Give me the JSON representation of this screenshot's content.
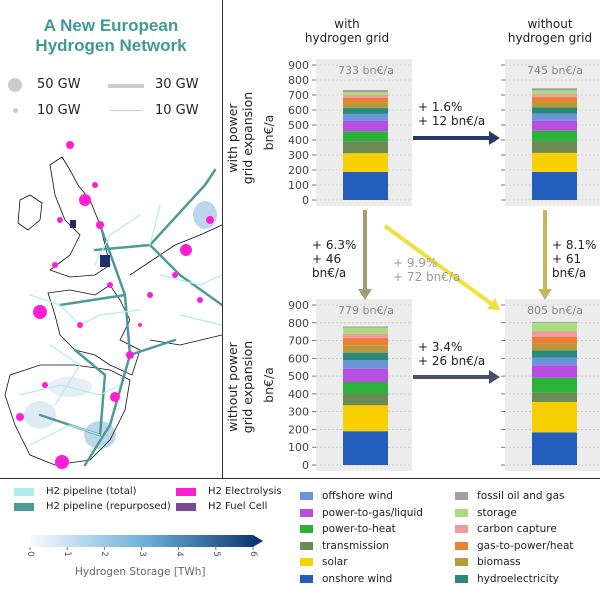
{
  "map": {
    "title_line1": "A New European",
    "title_line2": "Hydrogen Network",
    "size_legend": {
      "node_large": "50 GW",
      "node_small": "10 GW",
      "line_thick": "30 GW",
      "line_thin": "10 GW"
    },
    "legend": [
      {
        "label": "H2 pipeline (total)",
        "color": "#aeeeea"
      },
      {
        "label": "H2 pipeline (repurposed)",
        "color": "#4e9a98"
      },
      {
        "label": "H2 Electrolysis",
        "color": "#ff1fd2"
      },
      {
        "label": "H2 Fuel Cell",
        "color": "#7b4a92"
      }
    ],
    "colorbar": {
      "label": "Hydrogen Storage [TWh]",
      "ticks": [
        "0",
        "1",
        "2",
        "3",
        "4",
        "5",
        "6"
      ]
    }
  },
  "columns": {
    "with_grid": "with\nhydrogen grid",
    "without_grid": "without\nhydrogen grid"
  },
  "rows": {
    "with_power": "with power\ngrid expansion",
    "without_power": "without power\ngrid expansion"
  },
  "annotations": {
    "top_horizontal": "+ 1.6%\n+ 12 bn€/a",
    "left_vertical": "+ 6.3%\n+ 46\nbn€/a",
    "diagonal": "+ 9.9%\n+ 72 bn€/a",
    "right_vertical": "+ 8.1%\n+ 61\nbn€/a",
    "bottom_horizontal": "+ 3.4%\n+ 26 bn€/a"
  },
  "chart_data": {
    "type": "bar",
    "stacked": true,
    "ylabel": "bn€/a",
    "ylim": [
      0,
      900
    ],
    "yticks": [
      "0",
      "100",
      "200",
      "300",
      "400",
      "500",
      "600",
      "700",
      "800",
      "900"
    ],
    "grid": true,
    "components": [
      "onshore wind",
      "solar",
      "transmission",
      "power-to-heat",
      "power-to-gas/liquid",
      "offshore wind",
      "hydroelectricity",
      "biomass",
      "gas-to-power/heat",
      "carbon capture",
      "storage",
      "fossil oil and gas"
    ],
    "colors": {
      "onshore wind": "#235ebc",
      "solar": "#f8cf00",
      "transmission": "#6b8b55",
      "power-to-heat": "#2cb23a",
      "power-to-gas/liquid": "#b84ee0",
      "offshore wind": "#6a95d8",
      "hydroelectricity": "#2a8a7a",
      "biomass": "#b89a3a",
      "gas-to-power/heat": "#ea7f36",
      "carbon capture": "#f29aa0",
      "storage": "#a8dc7c",
      "fossil oil and gas": "#a0a0a0"
    },
    "panels": [
      {
        "label": "733 bn€/a",
        "total": 733,
        "values": [
          187,
          125,
          80,
          66,
          69,
          47,
          39,
          36,
          33,
          19,
          19,
          13
        ]
      },
      {
        "label": "745 bn€/a",
        "total": 745,
        "values": [
          187,
          127,
          79,
          69,
          67,
          47,
          41,
          37,
          32,
          20,
          25,
          14
        ]
      },
      {
        "label": "779 bn€/a",
        "total": 779,
        "values": [
          190,
          146,
          66,
          65,
          75,
          47,
          43,
          41,
          41,
          24,
          34,
          7
        ]
      },
      {
        "label": "805 bn€/a",
        "total": 805,
        "values": [
          183,
          172,
          51,
          84,
          71,
          43,
          41,
          37,
          38,
          31,
          49,
          5
        ]
      }
    ],
    "legend_order": [
      [
        "offshore wind",
        "power-to-gas/liquid",
        "power-to-heat",
        "transmission",
        "solar",
        "onshore wind"
      ],
      [
        "fossil oil and gas",
        "storage",
        "carbon capture",
        "gas-to-power/heat",
        "biomass",
        "hydroelectricity"
      ]
    ]
  }
}
